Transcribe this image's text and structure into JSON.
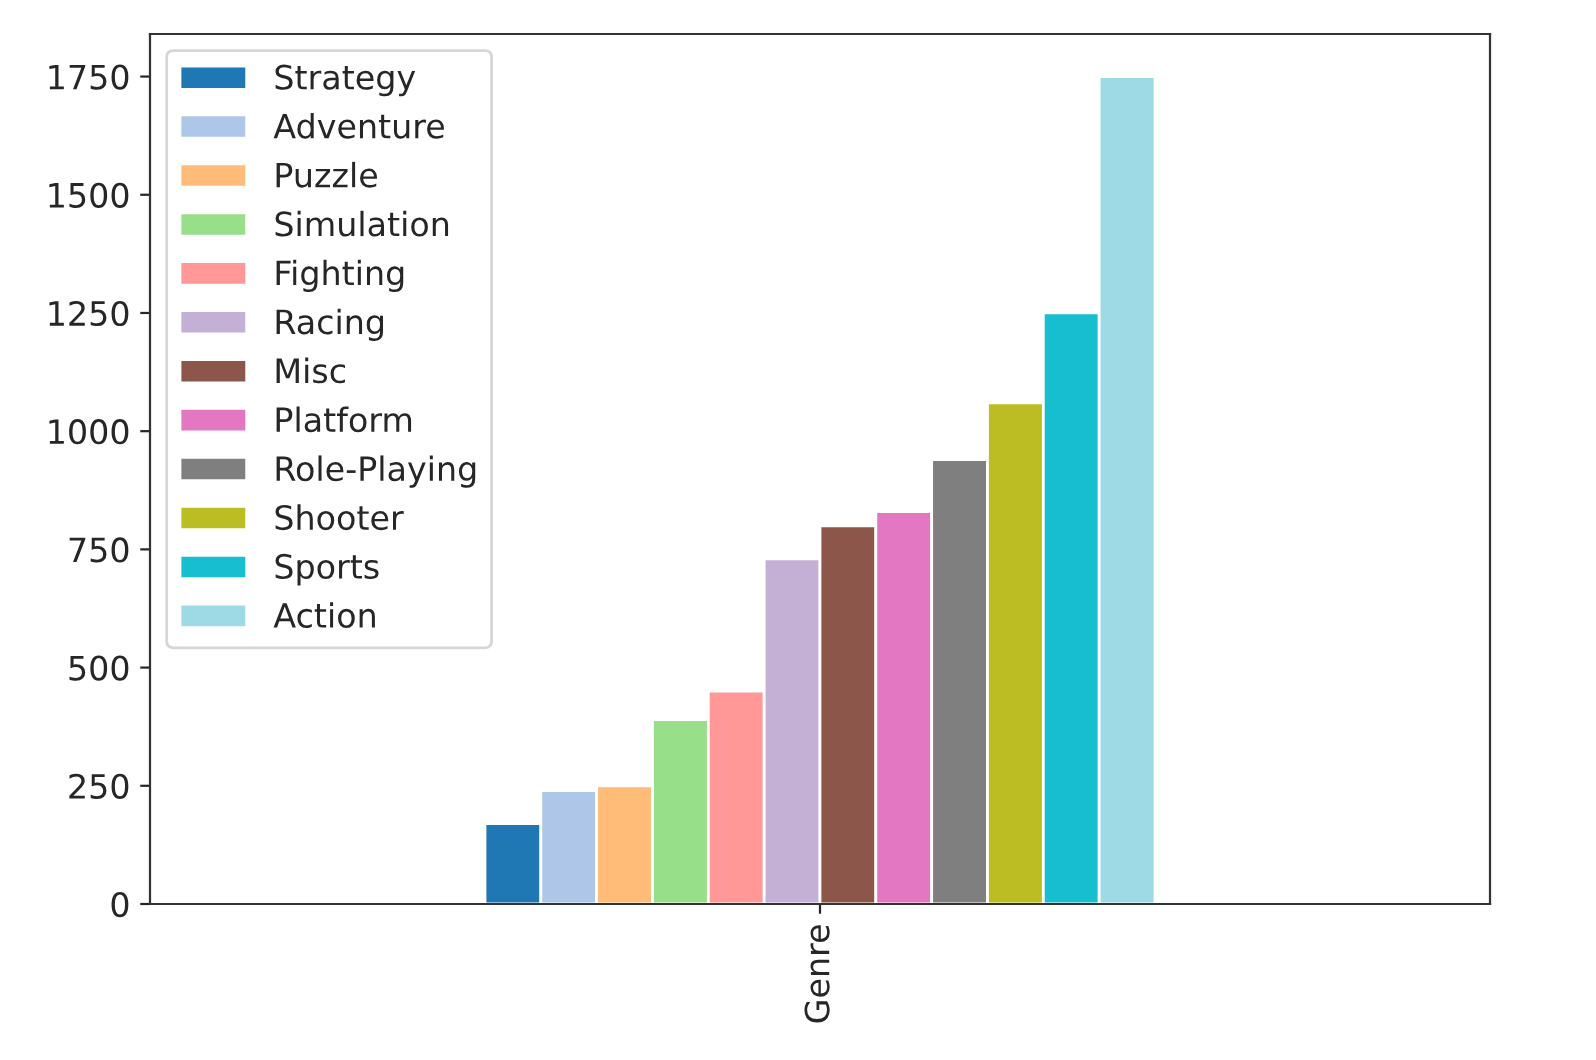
{
  "chart_data": {
    "type": "bar",
    "categories": [
      "Genre"
    ],
    "ylim": [
      0,
      1840
    ],
    "yticks": [
      0,
      250,
      500,
      750,
      1000,
      1250,
      1500,
      1750
    ],
    "grid": false,
    "legend": "top left",
    "series": [
      {
        "name": "Strategy",
        "color": "#1f77b4",
        "values": [
          170
        ]
      },
      {
        "name": "Adventure",
        "color": "#aec7e8",
        "values": [
          240
        ]
      },
      {
        "name": "Puzzle",
        "color": "#ffbb78",
        "values": [
          250
        ]
      },
      {
        "name": "Simulation",
        "color": "#98df8a",
        "values": [
          390
        ]
      },
      {
        "name": "Fighting",
        "color": "#ff9896",
        "values": [
          450
        ]
      },
      {
        "name": "Racing",
        "color": "#c5b0d5",
        "values": [
          730
        ]
      },
      {
        "name": "Misc",
        "color": "#8c564b",
        "values": [
          800
        ]
      },
      {
        "name": "Platform",
        "color": "#e377c2",
        "values": [
          830
        ]
      },
      {
        "name": "Role-Playing",
        "color": "#7f7f7f",
        "values": [
          940
        ]
      },
      {
        "name": "Shooter",
        "color": "#bcbd22",
        "values": [
          1060
        ]
      },
      {
        "name": "Sports",
        "color": "#17becf",
        "values": [
          1250
        ]
      },
      {
        "name": "Action",
        "color": "#9edae5",
        "values": [
          1750
        ]
      }
    ]
  }
}
